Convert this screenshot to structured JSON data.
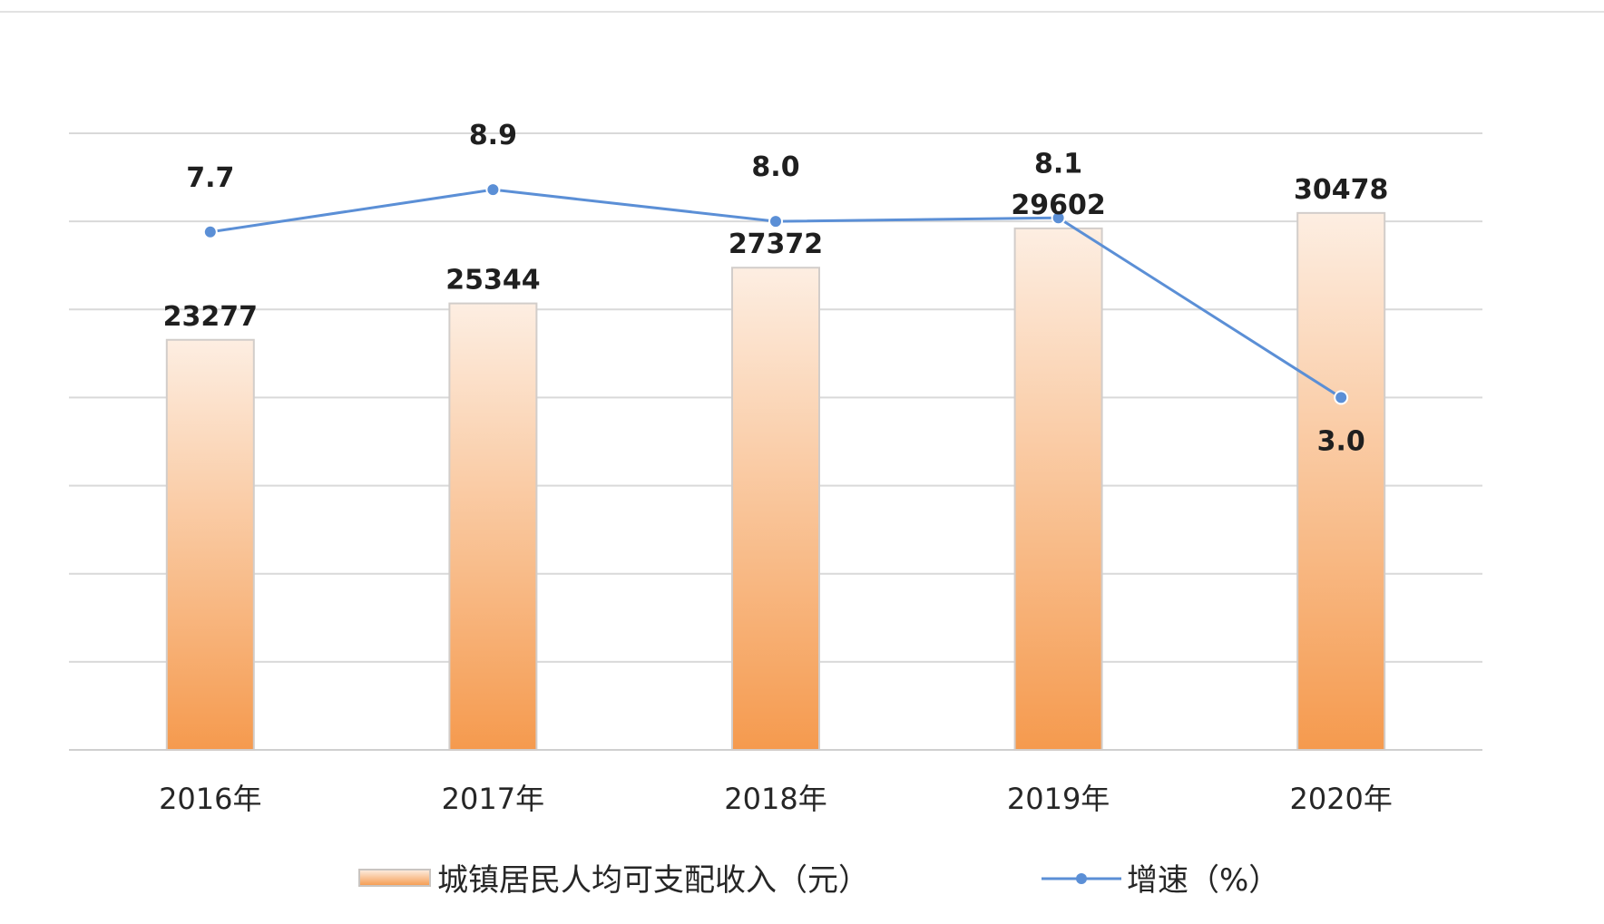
{
  "chart_data": {
    "type": "bar",
    "categories": [
      "2016年",
      "2017年",
      "2018年",
      "2019年",
      "2020年"
    ],
    "series": [
      {
        "name": "城镇居民人均可支配收入（元）",
        "type": "bar",
        "values": [
          23277,
          25344,
          27372,
          29602,
          30478
        ],
        "labels": [
          "23277",
          "25344",
          "27372",
          "29602",
          "30478"
        ]
      },
      {
        "name": "增速（%）",
        "type": "line",
        "values": [
          7.7,
          8.9,
          8.0,
          8.1,
          3.0
        ],
        "labels": [
          "7.7",
          "8.9",
          "8.0",
          "8.1",
          "3.0"
        ]
      }
    ],
    "y_left_range": [
      0,
      35000
    ],
    "y_right_range": [
      -7,
      10.5
    ],
    "gridlines": true,
    "legend_position": "bottom",
    "colors": {
      "bar_top": "#fdeee2",
      "bar_bottom": "#f59a4e",
      "bar_border": "#d2cdca",
      "line": "#5b8fd6",
      "grid": "#d9d9d9"
    }
  }
}
